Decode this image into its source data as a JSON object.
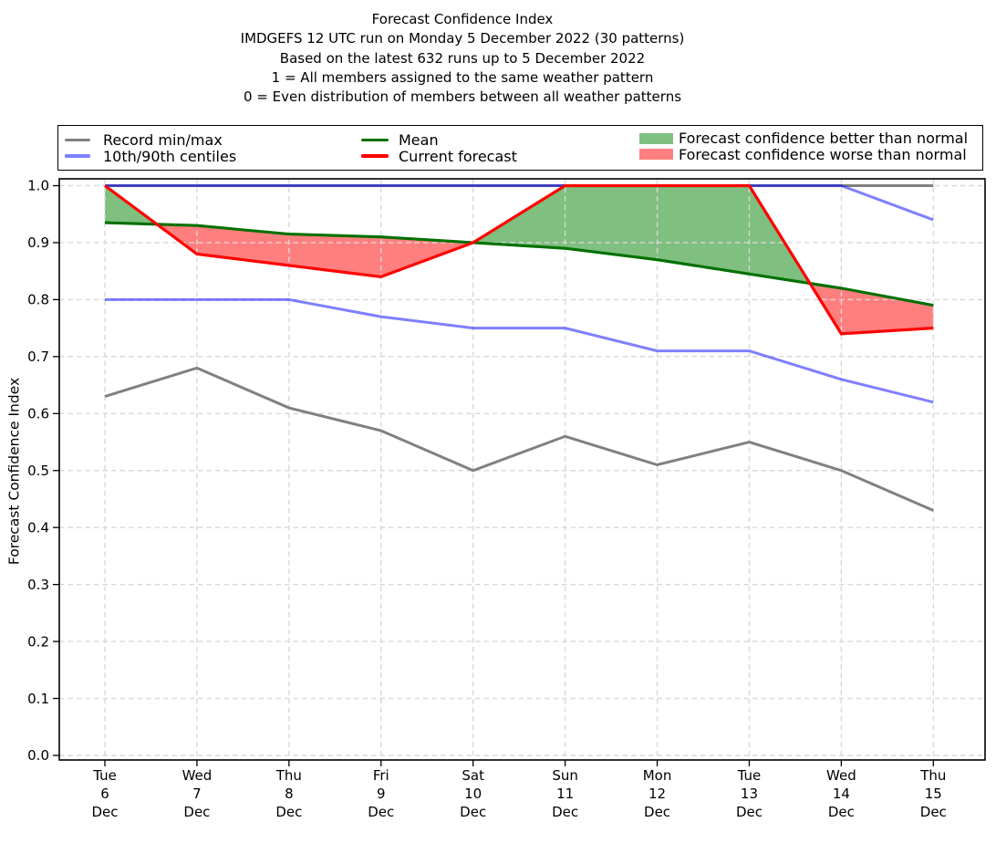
{
  "header": {
    "title_lines": [
      "Forecast Confidence Index",
      "IMDGEFS 12 UTC run on Monday 5 December 2022 (30 patterns)",
      "Based on the latest 632 runs up to 5 December 2022",
      "1 = All members assigned to the same weather pattern",
      "0 = Even distribution of members between all weather patterns"
    ]
  },
  "legend": {
    "items": [
      {
        "label": "Record min/max",
        "type": "line",
        "color": "#808080"
      },
      {
        "label": "10th/90th centiles",
        "type": "line",
        "color": "#7f7fff"
      },
      {
        "label": "Mean",
        "type": "line",
        "color": "#007000"
      },
      {
        "label": "Current forecast",
        "type": "line",
        "color": "#ff0000"
      },
      {
        "label": "Forecast confidence better than normal",
        "type": "patch",
        "color": "#80c080"
      },
      {
        "label": "Forecast confidence worse than normal",
        "type": "patch",
        "color": "#ff8080"
      }
    ]
  },
  "chart_data": {
    "type": "line",
    "title": "Forecast Confidence Index",
    "xlabel": "",
    "ylabel": "Forecast Confidence Index",
    "ylim": [
      0.0,
      1.0
    ],
    "grid": true,
    "legend_position": "top",
    "categories": [
      "Tue 6 Dec",
      "Wed 7 Dec",
      "Thu 8 Dec",
      "Fri 9 Dec",
      "Sat 10 Dec",
      "Sun 11 Dec",
      "Mon 12 Dec",
      "Tue 13 Dec",
      "Wed 14 Dec",
      "Thu 15 Dec"
    ],
    "x_tick_labels": [
      [
        "Tue",
        "6",
        "Dec"
      ],
      [
        "Wed",
        "7",
        "Dec"
      ],
      [
        "Thu",
        "8",
        "Dec"
      ],
      [
        "Fri",
        "9",
        "Dec"
      ],
      [
        "Sat",
        "10",
        "Dec"
      ],
      [
        "Sun",
        "11",
        "Dec"
      ],
      [
        "Mon",
        "12",
        "Dec"
      ],
      [
        "Tue",
        "13",
        "Dec"
      ],
      [
        "Wed",
        "14",
        "Dec"
      ],
      [
        "Thu",
        "15",
        "Dec"
      ]
    ],
    "y_ticks": [
      0.0,
      0.1,
      0.2,
      0.3,
      0.4,
      0.5,
      0.6,
      0.7,
      0.8,
      0.9,
      1.0
    ],
    "y_tick_labels": [
      "0.0",
      "0.1",
      "0.2",
      "0.3",
      "0.4",
      "0.5",
      "0.6",
      "0.7",
      "0.8",
      "0.9",
      "1.0"
    ],
    "series": [
      {
        "name": "Record max",
        "color": "#808080",
        "width": 3,
        "values": [
          1.0,
          1.0,
          1.0,
          1.0,
          1.0,
          1.0,
          1.0,
          1.0,
          1.0,
          1.0
        ]
      },
      {
        "name": "Record min",
        "color": "#808080",
        "width": 3,
        "values": [
          0.63,
          0.68,
          0.61,
          0.57,
          0.5,
          0.56,
          0.51,
          0.55,
          0.5,
          0.43
        ]
      },
      {
        "name": "90th centile",
        "color": "rgba(0,0,255,0.5)",
        "width": 3,
        "values": [
          1.0,
          1.0,
          1.0,
          1.0,
          1.0,
          1.0,
          1.0,
          1.0,
          1.0,
          0.94
        ]
      },
      {
        "name": "10th centile",
        "color": "rgba(0,0,255,0.5)",
        "width": 3,
        "values": [
          0.8,
          0.8,
          0.8,
          0.77,
          0.75,
          0.75,
          0.71,
          0.71,
          0.66,
          0.62
        ]
      },
      {
        "name": "Mean",
        "color": "#007000",
        "width": 3.1,
        "values": [
          0.935,
          0.93,
          0.915,
          0.91,
          0.9,
          0.89,
          0.87,
          0.845,
          0.82,
          0.79
        ]
      },
      {
        "name": "Current forecast",
        "color": "#ff0000",
        "width": 3.2,
        "values": [
          1.0,
          0.88,
          0.86,
          0.84,
          0.9,
          1.0,
          1.0,
          1.0,
          0.74,
          0.75
        ]
      }
    ],
    "fills": {
      "better_than_normal_color": "rgba(0,128,0,0.5)",
      "worse_than_normal_color": "rgba(255,0,0,0.5)",
      "rule": "area between Current forecast and Mean: green where forecast above mean, red where below"
    },
    "grid_color": "#d8d8d8"
  }
}
